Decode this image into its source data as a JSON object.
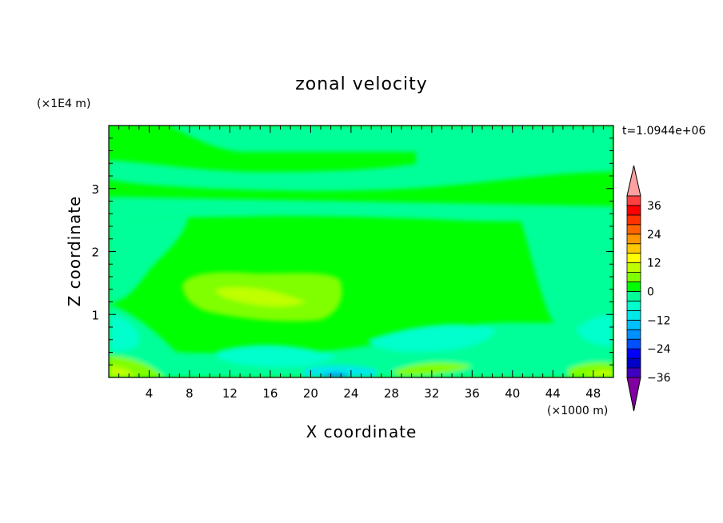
{
  "chart_data": {
    "type": "heatmap",
    "title": "zonal velocity",
    "xlabel": "X coordinate",
    "ylabel": "Z coordinate",
    "x_unit": "(×1000 m)",
    "y_unit": "(×1E4 m)",
    "time_label": "t=1.0944e+06",
    "xlim": [
      0,
      50
    ],
    "ylim": [
      0,
      4
    ],
    "x_ticks": [
      "4",
      "8",
      "12",
      "16",
      "20",
      "24",
      "28",
      "32",
      "36",
      "40",
      "44",
      "48"
    ],
    "y_ticks": [
      "1",
      "2",
      "3"
    ],
    "colorbar": {
      "levels": [
        -40,
        -36,
        -32,
        -28,
        -24,
        -20,
        -16,
        -12,
        -8,
        -4,
        0,
        4,
        8,
        12,
        16,
        20,
        24,
        28,
        32,
        36,
        40
      ],
      "labels": [
        "36",
        "24",
        "12",
        "0",
        "-12",
        "-24",
        "-36"
      ],
      "colors": [
        "#8000a0",
        "#4000c0",
        "#0000c8",
        "#0000ff",
        "#0050ff",
        "#0090ff",
        "#00c0ff",
        "#00e8e8",
        "#00ffcc",
        "#00ff99",
        "#00ff00",
        "#80ff00",
        "#c0ff00",
        "#ffff00",
        "#ffc800",
        "#ff9600",
        "#ff6400",
        "#ff3200",
        "#ff0000",
        "#ff4040",
        "#ffa0a0"
      ]
    },
    "grid": false,
    "legend": "colorbar-right"
  }
}
